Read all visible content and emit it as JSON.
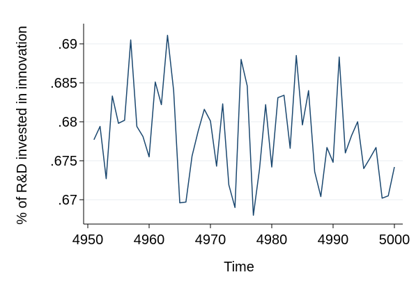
{
  "chart_data": {
    "type": "line",
    "title": "",
    "xlabel": "Time",
    "ylabel": "% of R&D invested in innovation",
    "xlim": [
      4950,
      5000
    ],
    "ylim": [
      0.668,
      0.6925
    ],
    "xticks": [
      4950,
      4960,
      4970,
      4980,
      4990,
      5000
    ],
    "xtick_labels": [
      "4950",
      "4960",
      "4970",
      "4980",
      "4990",
      "5000"
    ],
    "yticks": [
      0.67,
      0.675,
      0.68,
      0.685,
      0.69
    ],
    "ytick_labels": [
      ".67",
      ".675",
      ".68",
      ".685",
      ".69"
    ],
    "grid": true,
    "legend": "none",
    "line_color": "#1a476f",
    "series": [
      {
        "x": [
          4951,
          4952,
          4953,
          4954,
          4955,
          4956,
          4957,
          4958,
          4959,
          4960,
          4961,
          4962,
          4963,
          4964,
          4965,
          4966,
          4967,
          4968,
          4969,
          4970,
          4971,
          4972,
          4973,
          4974,
          4975,
          4976,
          4977,
          4978,
          4979,
          4980,
          4981,
          4982,
          4983,
          4984,
          4985,
          4986,
          4987,
          4988,
          4989,
          4990,
          4991,
          4992,
          4993,
          4994,
          4995,
          4996,
          4997,
          4998,
          4999,
          5000
        ],
        "values": [
          0.6777,
          0.6794,
          0.6727,
          0.6833,
          0.6798,
          0.6802,
          0.6905,
          0.6794,
          0.6781,
          0.6755,
          0.6851,
          0.6822,
          0.6911,
          0.684,
          0.6696,
          0.6697,
          0.6756,
          0.6788,
          0.6816,
          0.6801,
          0.6743,
          0.6823,
          0.6719,
          0.669,
          0.688,
          0.6846,
          0.668,
          0.6739,
          0.6822,
          0.6742,
          0.6831,
          0.6834,
          0.6766,
          0.6885,
          0.6796,
          0.684,
          0.6736,
          0.6704,
          0.6767,
          0.6748,
          0.6883,
          0.676,
          0.6782,
          0.68,
          0.674,
          0.6753,
          0.6767,
          0.6702,
          0.6705,
          0.6742
        ]
      }
    ]
  }
}
